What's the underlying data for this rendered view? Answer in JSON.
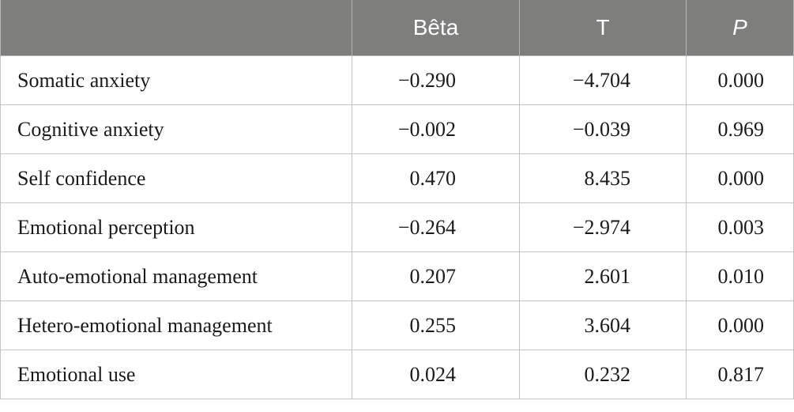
{
  "table": {
    "headers": [
      "",
      "Bêta",
      "T",
      "P"
    ],
    "rows": [
      {
        "label": "Somatic anxiety",
        "beta": "−0.290",
        "t": "−4.704",
        "p": "0.000"
      },
      {
        "label": "Cognitive anxiety",
        "beta": "−0.002",
        "t": "−0.039",
        "p": "0.969"
      },
      {
        "label": "Self confidence",
        "beta": "0.470",
        "t": "8.435",
        "p": "0.000"
      },
      {
        "label": "Emotional perception",
        "beta": "−0.264",
        "t": "−2.974",
        "p": "0.003"
      },
      {
        "label": "Auto-emotional management",
        "beta": "0.207",
        "t": "2.601",
        "p": "0.010"
      },
      {
        "label": "Hetero-emotional management",
        "beta": "0.255",
        "t": "3.604",
        "p": "0.000"
      },
      {
        "label": "Emotional use",
        "beta": "0.024",
        "t": "0.232",
        "p": "0.817"
      }
    ]
  }
}
